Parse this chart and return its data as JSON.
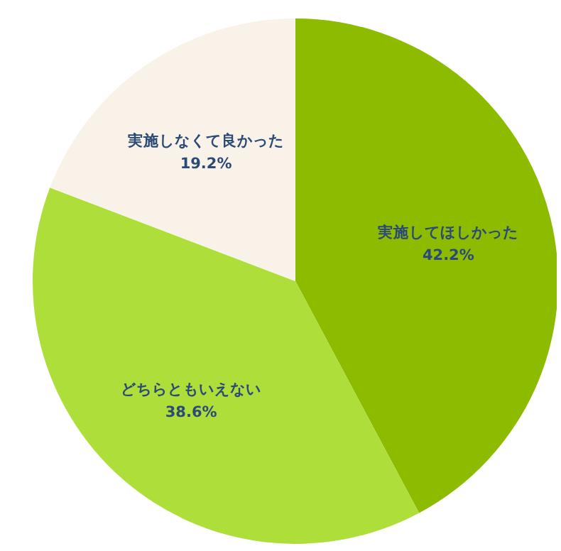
{
  "chart_data": {
    "type": "pie",
    "categories": [
      "実施してほしかった",
      "どちらともいえない",
      "実施しなくて良かった"
    ],
    "values": [
      42.2,
      38.6,
      19.2
    ],
    "colors": [
      "#8dbb00",
      "#aede3a",
      "#f8f2e8"
    ],
    "value_labels": [
      "42.2%",
      "38.6%",
      "19.2%"
    ],
    "legend": false
  }
}
